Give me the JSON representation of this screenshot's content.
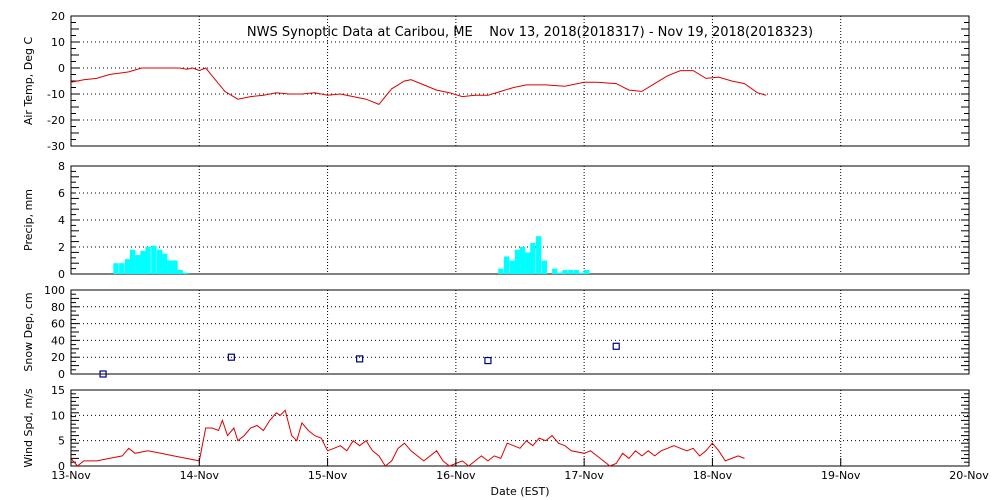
{
  "chart_data": {
    "title": "NWS Synoptic Data at Caribou, ME    Nov 13, 2018(2018317) - Nov 19, 2018(2018323)",
    "xlabel": "Date (EST)",
    "x_tick_labels": [
      "13-Nov",
      "14-Nov",
      "15-Nov",
      "16-Nov",
      "17-Nov",
      "18-Nov",
      "19-Nov",
      "20-Nov"
    ],
    "x_range_days": [
      0,
      7
    ],
    "grid": "dotted",
    "colors": {
      "temp": "#dd0000",
      "precip": "#00ffff",
      "snow": "#000080",
      "wind": "#dd0000"
    },
    "panels": [
      {
        "id": "temp",
        "type": "line",
        "ylabel": "Air Temp, Deg C",
        "ylim": [
          -30,
          20
        ],
        "yticks": [
          20,
          10,
          0,
          -10,
          -20,
          -30
        ],
        "points": [
          [
            0,
            -5.5
          ],
          [
            0.1,
            -4.5
          ],
          [
            0.2,
            -4
          ],
          [
            0.3,
            -2.5
          ],
          [
            0.45,
            -1.5
          ],
          [
            0.55,
            0
          ],
          [
            0.7,
            0
          ],
          [
            0.85,
            0
          ],
          [
            0.9,
            -0.5
          ],
          [
            0.95,
            0
          ],
          [
            1.0,
            -1
          ],
          [
            1.05,
            0
          ],
          [
            1.1,
            -3
          ],
          [
            1.2,
            -9
          ],
          [
            1.3,
            -12
          ],
          [
            1.4,
            -11
          ],
          [
            1.5,
            -10.5
          ],
          [
            1.6,
            -9.5
          ],
          [
            1.7,
            -10
          ],
          [
            1.8,
            -10
          ],
          [
            1.9,
            -9.5
          ],
          [
            2.0,
            -10.5
          ],
          [
            2.1,
            -10
          ],
          [
            2.2,
            -11
          ],
          [
            2.3,
            -12
          ],
          [
            2.4,
            -14
          ],
          [
            2.5,
            -8
          ],
          [
            2.6,
            -5
          ],
          [
            2.65,
            -4.5
          ],
          [
            2.75,
            -6.5
          ],
          [
            2.85,
            -8.5
          ],
          [
            2.95,
            -9.5
          ],
          [
            3.05,
            -11
          ],
          [
            3.15,
            -10.5
          ],
          [
            3.25,
            -10.5
          ],
          [
            3.35,
            -9
          ],
          [
            3.45,
            -7.5
          ],
          [
            3.55,
            -6.5
          ],
          [
            3.7,
            -6.5
          ],
          [
            3.85,
            -7
          ],
          [
            4.0,
            -5.5
          ],
          [
            4.1,
            -5.5
          ],
          [
            4.25,
            -6
          ],
          [
            4.35,
            -8.5
          ],
          [
            4.45,
            -9
          ],
          [
            4.55,
            -6
          ],
          [
            4.65,
            -3
          ],
          [
            4.75,
            -1
          ],
          [
            4.85,
            -1
          ],
          [
            4.95,
            -4
          ],
          [
            5.05,
            -3.5
          ],
          [
            5.15,
            -5
          ],
          [
            5.25,
            -6
          ],
          [
            5.35,
            -9.5
          ],
          [
            5.42,
            -10.5
          ]
        ]
      },
      {
        "id": "precip",
        "type": "bar",
        "ylabel": "Precip, mm",
        "ylim": [
          0,
          8
        ],
        "yticks": [
          8,
          6,
          4,
          2,
          0
        ],
        "bin_days": 0.0417,
        "bars": [
          [
            0.33,
            0.8
          ],
          [
            0.375,
            0.8
          ],
          [
            0.42,
            1.1
          ],
          [
            0.46,
            1.8
          ],
          [
            0.5,
            1.4
          ],
          [
            0.54,
            1.7
          ],
          [
            0.58,
            2.0
          ],
          [
            0.625,
            2.1
          ],
          [
            0.67,
            1.8
          ],
          [
            0.71,
            1.5
          ],
          [
            0.75,
            1.0
          ],
          [
            0.79,
            1.0
          ],
          [
            0.83,
            0.3
          ],
          [
            0.875,
            0.1
          ],
          [
            3.33,
            0.4
          ],
          [
            3.375,
            1.3
          ],
          [
            3.42,
            1.0
          ],
          [
            3.46,
            1.8
          ],
          [
            3.5,
            2.0
          ],
          [
            3.54,
            1.6
          ],
          [
            3.58,
            2.3
          ],
          [
            3.625,
            2.8
          ],
          [
            3.67,
            1.0
          ],
          [
            3.75,
            0.4
          ],
          [
            3.79,
            0.1
          ],
          [
            3.83,
            0.3
          ],
          [
            3.875,
            0.3
          ],
          [
            3.92,
            0.3
          ],
          [
            3.96,
            0.1
          ],
          [
            4.0,
            0.3
          ]
        ]
      },
      {
        "id": "snow",
        "type": "scatter",
        "ylabel": "Snow Dep, cm",
        "ylim": [
          0,
          100
        ],
        "yticks": [
          100,
          80,
          60,
          40,
          20,
          0
        ],
        "points": [
          [
            0.25,
            0
          ],
          [
            1.25,
            20
          ],
          [
            2.25,
            18
          ],
          [
            3.25,
            16
          ],
          [
            4.25,
            33
          ]
        ]
      },
      {
        "id": "wind",
        "type": "line",
        "ylabel": "Wind Spd, m/s",
        "ylim": [
          0,
          15
        ],
        "yticks": [
          15,
          10,
          5,
          0
        ],
        "points": [
          [
            0,
            1.5
          ],
          [
            0.05,
            0
          ],
          [
            0.1,
            1
          ],
          [
            0.2,
            1
          ],
          [
            0.3,
            1.5
          ],
          [
            0.4,
            2
          ],
          [
            0.45,
            3.5
          ],
          [
            0.5,
            2.5
          ],
          [
            0.6,
            3
          ],
          [
            0.7,
            2.5
          ],
          [
            0.8,
            2
          ],
          [
            0.9,
            1.5
          ],
          [
            1.0,
            1
          ],
          [
            1.05,
            7.5
          ],
          [
            1.1,
            7.5
          ],
          [
            1.15,
            7
          ],
          [
            1.18,
            9
          ],
          [
            1.22,
            6
          ],
          [
            1.27,
            7.5
          ],
          [
            1.3,
            5
          ],
          [
            1.35,
            6
          ],
          [
            1.4,
            7.5
          ],
          [
            1.45,
            8
          ],
          [
            1.5,
            7
          ],
          [
            1.55,
            9
          ],
          [
            1.6,
            10.5
          ],
          [
            1.63,
            10
          ],
          [
            1.67,
            11
          ],
          [
            1.72,
            6
          ],
          [
            1.76,
            5
          ],
          [
            1.8,
            8.5
          ],
          [
            1.85,
            7
          ],
          [
            1.9,
            6
          ],
          [
            1.95,
            5.5
          ],
          [
            2.0,
            3
          ],
          [
            2.05,
            3.5
          ],
          [
            2.1,
            4
          ],
          [
            2.15,
            3
          ],
          [
            2.2,
            5
          ],
          [
            2.25,
            4
          ],
          [
            2.3,
            5
          ],
          [
            2.35,
            3
          ],
          [
            2.4,
            2
          ],
          [
            2.45,
            0
          ],
          [
            2.5,
            1
          ],
          [
            2.55,
            3.5
          ],
          [
            2.6,
            4.5
          ],
          [
            2.65,
            3
          ],
          [
            2.7,
            2
          ],
          [
            2.75,
            1
          ],
          [
            2.8,
            2
          ],
          [
            2.85,
            3
          ],
          [
            2.9,
            1
          ],
          [
            2.95,
            0
          ],
          [
            3.0,
            0.5
          ],
          [
            3.05,
            1
          ],
          [
            3.1,
            0
          ],
          [
            3.15,
            1
          ],
          [
            3.2,
            2
          ],
          [
            3.25,
            1
          ],
          [
            3.3,
            2
          ],
          [
            3.35,
            1.5
          ],
          [
            3.4,
            4.5
          ],
          [
            3.45,
            4
          ],
          [
            3.5,
            3.5
          ],
          [
            3.55,
            5
          ],
          [
            3.6,
            4
          ],
          [
            3.65,
            5.5
          ],
          [
            3.7,
            5
          ],
          [
            3.75,
            6
          ],
          [
            3.8,
            4.5
          ],
          [
            3.85,
            4
          ],
          [
            3.9,
            3
          ],
          [
            4.0,
            2.5
          ],
          [
            4.05,
            3
          ],
          [
            4.1,
            2
          ],
          [
            4.15,
            1
          ],
          [
            4.2,
            0
          ],
          [
            4.25,
            0.5
          ],
          [
            4.3,
            2.5
          ],
          [
            4.35,
            1.5
          ],
          [
            4.4,
            3
          ],
          [
            4.45,
            2
          ],
          [
            4.5,
            3
          ],
          [
            4.55,
            2
          ],
          [
            4.6,
            3
          ],
          [
            4.65,
            3.5
          ],
          [
            4.7,
            4
          ],
          [
            4.75,
            3.5
          ],
          [
            4.8,
            3
          ],
          [
            4.85,
            3.5
          ],
          [
            4.9,
            2
          ],
          [
            4.95,
            3
          ],
          [
            5.0,
            4.5
          ],
          [
            5.05,
            3
          ],
          [
            5.1,
            1
          ],
          [
            5.15,
            1.5
          ],
          [
            5.2,
            2
          ],
          [
            5.25,
            1.5
          ]
        ]
      }
    ]
  }
}
